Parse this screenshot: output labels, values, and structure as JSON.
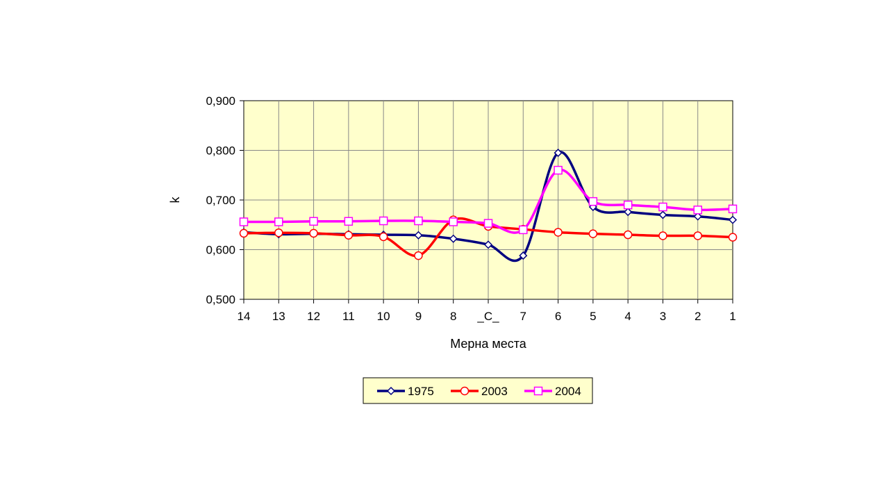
{
  "chart_data": {
    "type": "line",
    "title": "",
    "xlabel": "Мерна места",
    "ylabel": "k",
    "categories": [
      "14",
      "13",
      "12",
      "11",
      "10",
      "9",
      "8",
      "_C_",
      "7",
      "6",
      "5",
      "4",
      "3",
      "2",
      "1"
    ],
    "ylim": [
      0.5,
      0.9
    ],
    "yticks": [
      "0,500",
      "0,600",
      "0,700",
      "0,800",
      "0,900"
    ],
    "yticks_values": [
      0.5,
      0.6,
      0.7,
      0.8,
      0.9
    ],
    "grid": true,
    "legend_position": "bottom",
    "series": [
      {
        "name": "1975",
        "color": "#000080",
        "marker": "diamond",
        "values": [
          0.635,
          0.631,
          0.632,
          0.631,
          0.63,
          0.629,
          0.622,
          0.61,
          0.588,
          0.795,
          0.686,
          0.676,
          0.67,
          0.667,
          0.66
        ]
      },
      {
        "name": "2003",
        "color": "#ff0000",
        "marker": "circle",
        "values": [
          0.633,
          0.634,
          0.633,
          0.629,
          0.626,
          0.588,
          0.66,
          0.647,
          0.641,
          0.635,
          0.632,
          0.63,
          0.628,
          0.628,
          0.625
        ]
      },
      {
        "name": "2004",
        "color": "#ff00ff",
        "marker": "square",
        "values": [
          0.656,
          0.656,
          0.657,
          0.657,
          0.658,
          0.658,
          0.656,
          0.653,
          0.64,
          0.76,
          0.697,
          0.69,
          0.686,
          0.68,
          0.682
        ]
      }
    ],
    "colors": {
      "plot_background": "#ffffcc",
      "grid": "#888888",
      "legend_background": "#ffffcc"
    }
  }
}
